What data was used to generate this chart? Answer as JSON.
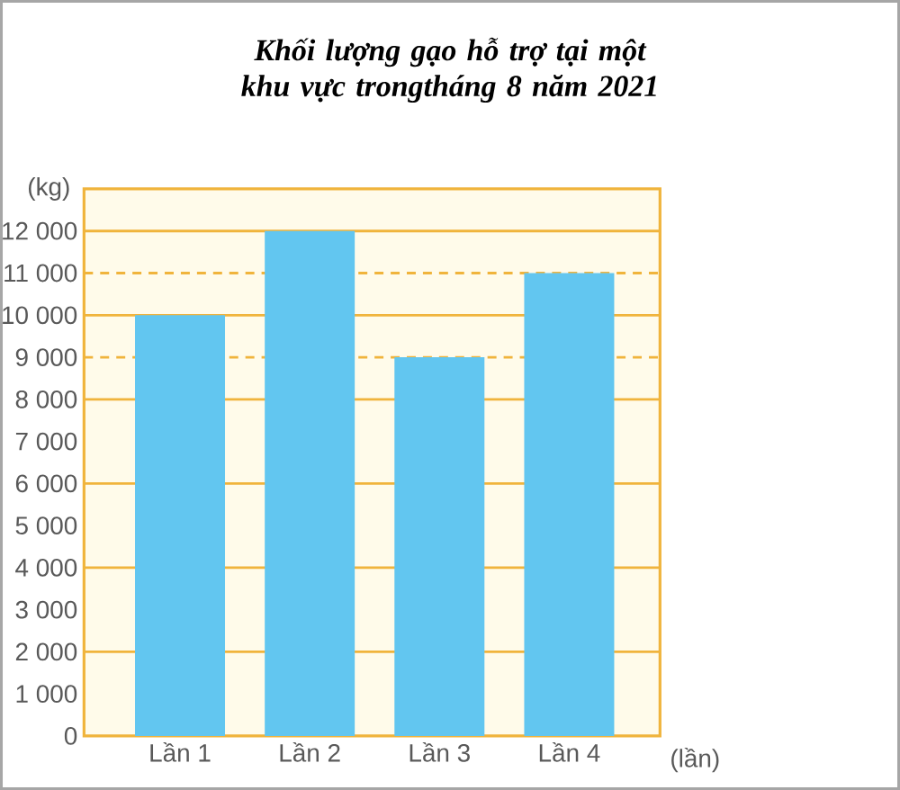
{
  "chart_data": {
    "type": "bar",
    "title": "Khối lượng gạo hỗ trợ tại một khu vực trongtháng 8 năm 2021",
    "xlabel": "(lần)",
    "ylabel": "(kg)",
    "categories": [
      "Lần 1",
      "Lần 2",
      "Lần 3",
      "Lần 4"
    ],
    "values": [
      10000,
      12000,
      9000,
      11000
    ],
    "color": "#62c6f0",
    "ylim": [
      0,
      13000
    ],
    "yticks": [
      0,
      {
        "value": 1000,
        "label": "1 000"
      },
      {
        "value": 2000,
        "label": "2 000"
      },
      {
        "value": 3000,
        "label": "3 000"
      },
      {
        "value": 4000,
        "label": "4 000"
      },
      {
        "value": 5000,
        "label": "5 000"
      },
      {
        "value": 6000,
        "label": "6 000"
      },
      {
        "value": 7000,
        "label": "7 000"
      },
      {
        "value": 8000,
        "label": "8 000"
      },
      {
        "value": 9000,
        "label": "9 000"
      },
      {
        "value": 10000,
        "label": "10 000"
      },
      {
        "value": 11000,
        "label": "11 000"
      },
      {
        "value": 12000,
        "label": "12 000"
      }
    ],
    "ref_lines": [
      {
        "axis": "y",
        "value": 2000,
        "color": "#f0b43c",
        "line_style": "solid"
      },
      {
        "axis": "y",
        "value": 4000,
        "color": "#f0b43c",
        "line_style": "solid"
      },
      {
        "axis": "y",
        "value": 6000,
        "color": "#f0b43c",
        "line_style": "solid"
      },
      {
        "axis": "y",
        "value": 8000,
        "color": "#f0b43c",
        "line_style": "solid"
      },
      {
        "axis": "y",
        "value": 9000,
        "color": "#f0b43c",
        "line_style": "dashed"
      },
      {
        "axis": "y",
        "value": 10000,
        "color": "#f0b43c",
        "line_style": "solid"
      },
      {
        "axis": "y",
        "value": 11000,
        "color": "#f0b43c",
        "line_style": "dashed"
      },
      {
        "axis": "y",
        "value": 12000,
        "color": "#f0b43c",
        "line_style": "solid"
      }
    ]
  }
}
